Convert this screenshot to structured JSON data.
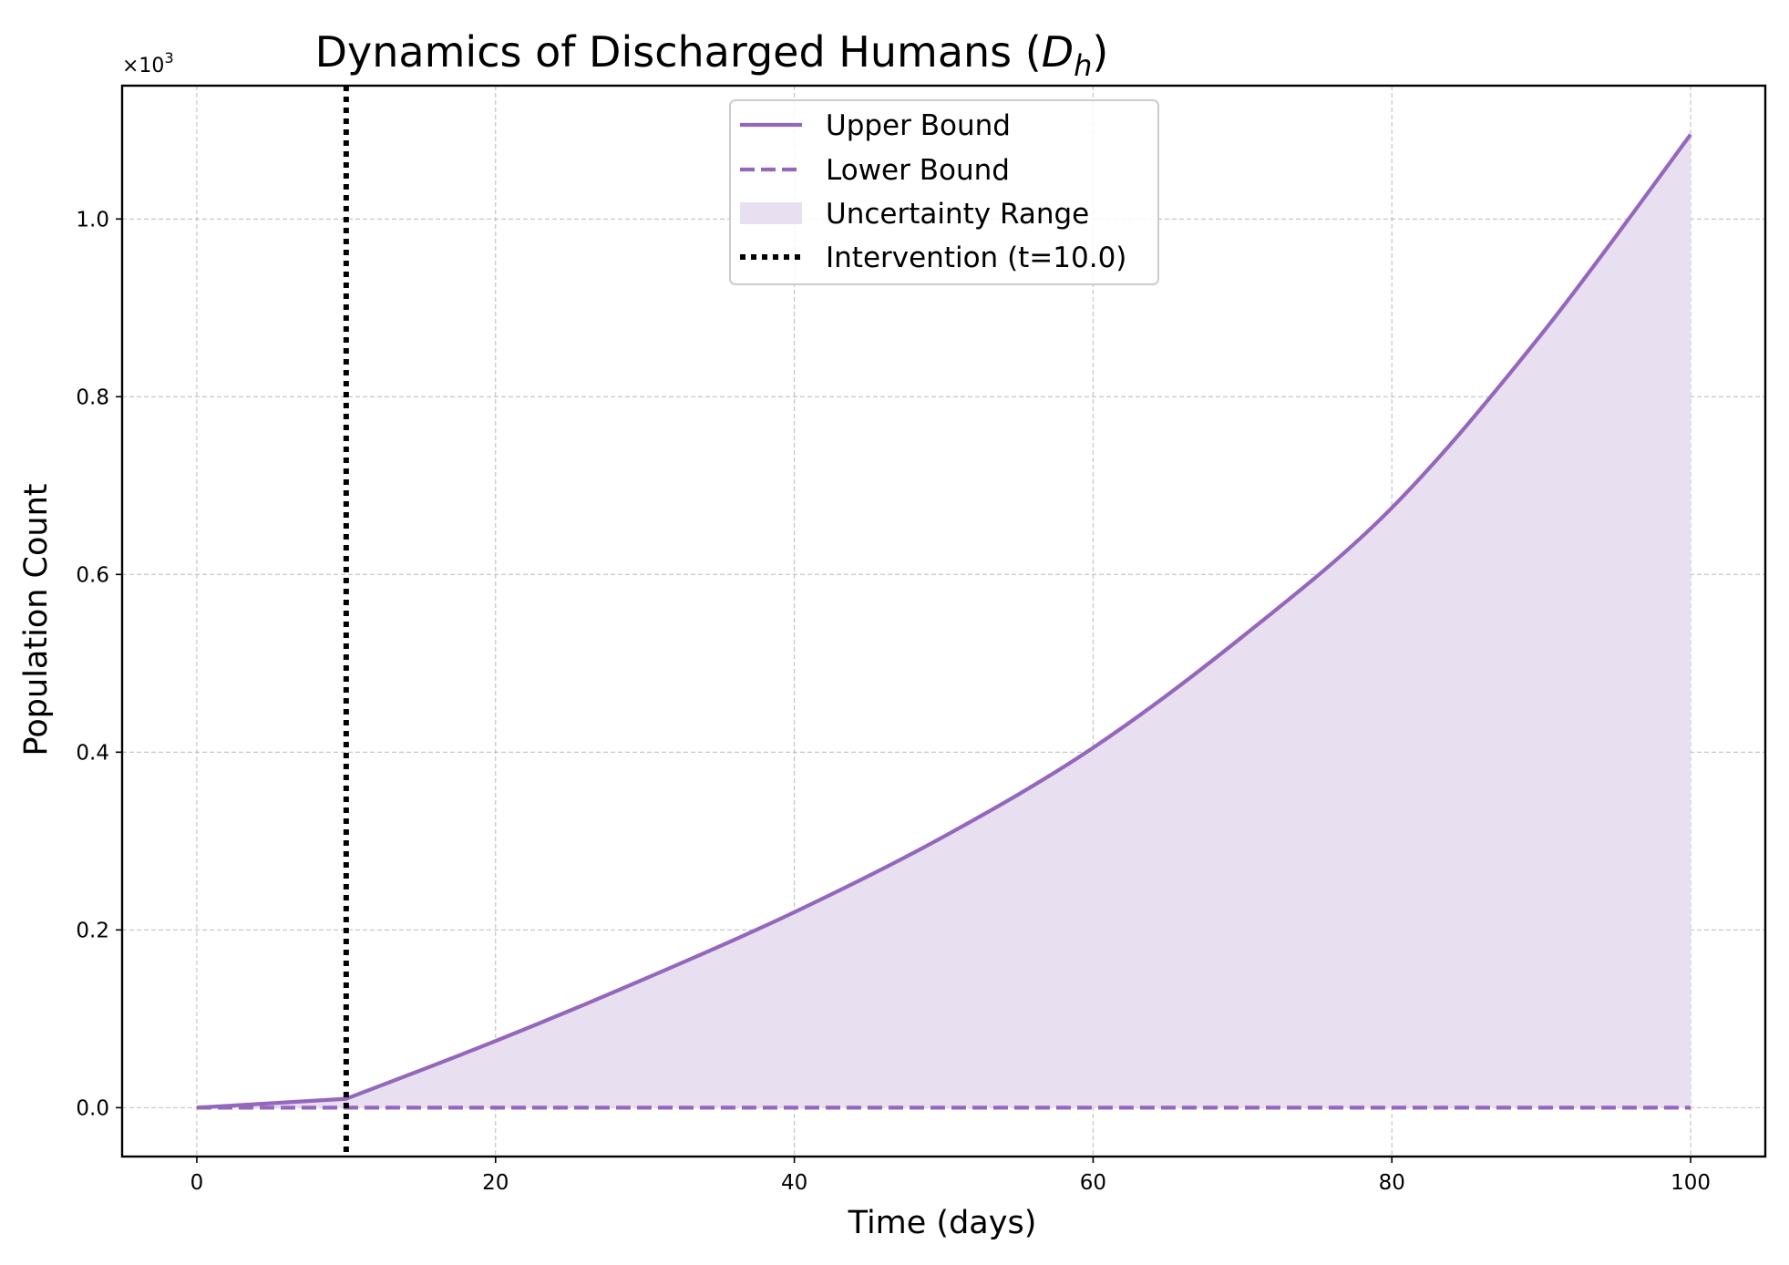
{
  "chart_data": {
    "type": "line",
    "title": "Dynamics of Discharged Humans (",
    "title_math_symbol": "D",
    "title_math_subscript": "h",
    "title_suffix": ")",
    "xlabel": "Time (days)",
    "ylabel": "Population Count",
    "y_scale_label": "×10",
    "y_scale_exponent": "3",
    "xlim": [
      -5,
      105
    ],
    "ylim": [
      -0.055,
      1.15
    ],
    "x_ticks": [
      0,
      20,
      40,
      60,
      80,
      100
    ],
    "x_tick_labels": [
      "0",
      "20",
      "40",
      "60",
      "80",
      "100"
    ],
    "y_ticks": [
      0.0,
      0.2,
      0.4,
      0.6,
      0.8,
      1.0
    ],
    "y_tick_labels": [
      "0.0",
      "0.2",
      "0.4",
      "0.6",
      "0.8",
      "1.0"
    ],
    "grid": true,
    "legend_position": "upper center",
    "intervention_x": 10,
    "x": [
      0,
      10,
      20,
      30,
      40,
      50,
      60,
      70,
      80,
      90,
      100
    ],
    "series": [
      {
        "name": "Upper Bound",
        "style": "solid",
        "color": "#9467bd",
        "values": [
          0.0,
          0.01,
          0.075,
          0.145,
          0.22,
          0.305,
          0.405,
          0.53,
          0.675,
          0.87,
          1.095
        ]
      },
      {
        "name": "Lower Bound",
        "style": "dashed",
        "color": "#9467bd",
        "values": [
          0.0,
          0.0,
          0.0,
          0.0,
          0.0,
          0.0,
          0.0,
          0.0,
          0.0,
          0.0,
          0.0
        ]
      }
    ],
    "legend": [
      {
        "label": "Upper Bound",
        "kind": "solid"
      },
      {
        "label": "Lower Bound",
        "kind": "dashed"
      },
      {
        "label": "Uncertainty Range",
        "kind": "fill"
      },
      {
        "label": "Intervention (t=10.0)",
        "kind": "dotted"
      }
    ],
    "colors": {
      "line": "#9467bd",
      "fill": "#e8dff1",
      "intervention": "#000000",
      "grid": "#b0b0b0"
    }
  }
}
